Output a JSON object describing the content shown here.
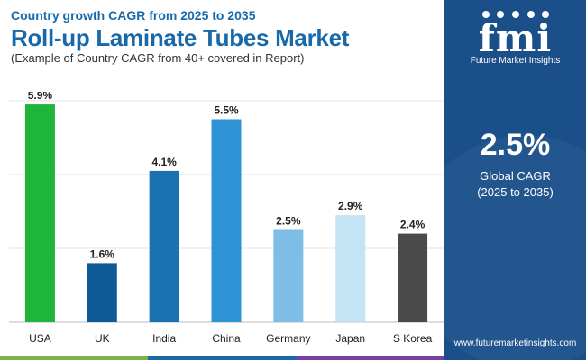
{
  "header": {
    "supertitle": "Country growth CAGR from 2025 to 2035",
    "title": "Roll-up Laminate Tubes Market",
    "subtitle": "(Example of Country CAGR from 40+ covered in Report)"
  },
  "sidebar": {
    "logo": "fmi",
    "logo_subtitle": "Future Market Insights",
    "cagr_value": "2.5%",
    "cagr_label": "Global CAGR",
    "cagr_period": "(2025 to 2035)",
    "website": "www.futuremarketinsights.com"
  },
  "colors": {
    "title": "#1769aa",
    "sidebar": "#1b4f8a",
    "bottom_bar": [
      "#7cb342",
      "#1769aa",
      "#7b3fa0"
    ]
  },
  "chart_data": {
    "type": "bar",
    "categories": [
      "USA",
      "UK",
      "India",
      "China",
      "Germany",
      "Japan",
      "S Korea"
    ],
    "values": [
      5.9,
      1.6,
      4.1,
      5.5,
      2.5,
      2.9,
      2.4
    ],
    "data_labels": [
      "5.9%",
      "1.6%",
      "4.1%",
      "5.5%",
      "2.5%",
      "2.9%",
      "2.4%"
    ],
    "bar_colors": [
      "#1fb53b",
      "#0d5a96",
      "#1a73b0",
      "#2e93d6",
      "#7ebde6",
      "#c4e3f5",
      "#4a4a4a"
    ],
    "ylim": [
      0,
      6
    ],
    "grid": true
  }
}
